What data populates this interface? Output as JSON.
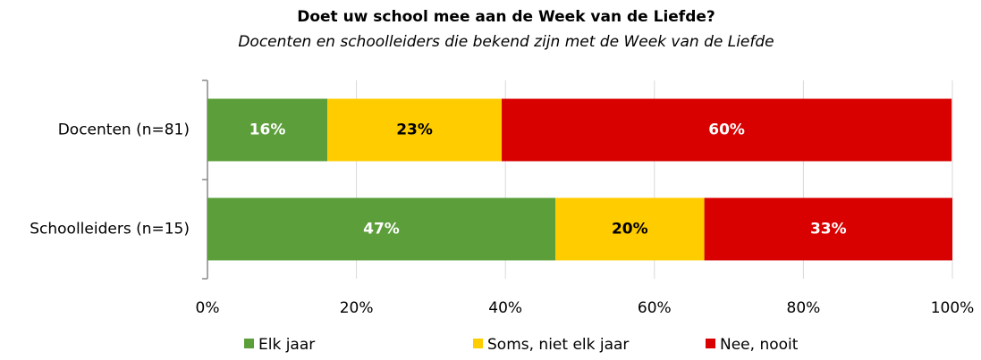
{
  "chart_data": {
    "type": "stacked_barh",
    "title": "Doet uw school mee aan de Week van de Liefde?",
    "subtitle": "Docenten en schoolleiders die bekend zijn met de Week van de Liefde",
    "categories": [
      "Docenten (n=81)",
      "Schoolleiders (n=15)"
    ],
    "series": [
      {
        "name": "Elk jaar",
        "color": "#5b9e3a",
        "label_color": "#ffffff",
        "values": [
          16.1,
          46.7
        ],
        "value_labels": [
          "16%",
          "47%"
        ]
      },
      {
        "name": "Soms, niet elk jaar",
        "color": "#ffcc00",
        "label_color": "#000000",
        "values": [
          23.4,
          20.0
        ],
        "value_labels": [
          "23%",
          "20%"
        ]
      },
      {
        "name": "Nee, nooit",
        "color": "#d90000",
        "label_color": "#ffffff",
        "values": [
          60.4,
          33.3
        ],
        "value_labels": [
          "60%",
          "33%"
        ]
      }
    ],
    "xlim": [
      0,
      100
    ],
    "xticks": [
      {
        "value": 0,
        "label": "0%"
      },
      {
        "value": 20,
        "label": "20%"
      },
      {
        "value": 40,
        "label": "40%"
      },
      {
        "value": 60,
        "label": "60%"
      },
      {
        "value": 80,
        "label": "80%"
      },
      {
        "value": 100,
        "label": "100%"
      }
    ],
    "grid": true,
    "legend": "bottom"
  }
}
